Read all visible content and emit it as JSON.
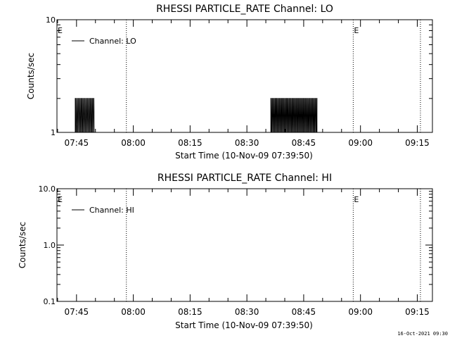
{
  "footer_timestamp": "16-Oct-2021 09:30",
  "chart_data": [
    {
      "type": "line",
      "title": "RHESSI PARTICLE_RATE Channel: LO",
      "xlabel": "Start Time (10-Nov-09 07:39:50)",
      "ylabel": "Counts/sec",
      "yscale": "log",
      "ylim": [
        1,
        10
      ],
      "xlim": [
        "07:39:50",
        "09:19:00"
      ],
      "yticks": [
        "1",
        "10"
      ],
      "xticks": [
        "07:45",
        "08:00",
        "08:15",
        "08:30",
        "08:45",
        "09:00",
        "09:15"
      ],
      "legend": "Channel: LO",
      "legend_position": "top-left",
      "markers": [
        {
          "label": "E",
          "time": "07:39:50",
          "style": "none"
        },
        {
          "label": "",
          "time": "07:58:10",
          "style": "dotted"
        },
        {
          "label": "E",
          "time": "08:58:05",
          "style": "dotted"
        },
        {
          "label": "",
          "time": "09:15:50",
          "style": "dotted"
        }
      ],
      "series": [
        {
          "name": "Channel: LO",
          "bursts": [
            {
              "start": "07:44:40",
              "end": "07:49:50",
              "low": 1,
              "high": 2,
              "period_s": 24
            },
            {
              "start": "08:36:20",
              "end": "08:48:30",
              "low": 1,
              "high": 2,
              "period_s": 22
            }
          ]
        }
      ]
    },
    {
      "type": "line",
      "title": "RHESSI PARTICLE_RATE Channel: HI",
      "xlabel": "Start Time (10-Nov-09 07:39:50)",
      "ylabel": "Counts/sec",
      "yscale": "log",
      "ylim": [
        0.1,
        10
      ],
      "xlim": [
        "07:39:50",
        "09:19:00"
      ],
      "yticks": [
        "0.1",
        "1.0",
        "10.0"
      ],
      "xticks": [
        "07:45",
        "08:00",
        "08:15",
        "08:30",
        "08:45",
        "09:00",
        "09:15"
      ],
      "legend": "Channel: HI",
      "legend_position": "top-left",
      "markers": [
        {
          "label": "E",
          "time": "07:39:50",
          "style": "none"
        },
        {
          "label": "",
          "time": "07:58:10",
          "style": "dotted"
        },
        {
          "label": "E",
          "time": "08:58:05",
          "style": "dotted"
        },
        {
          "label": "",
          "time": "09:15:50",
          "style": "dotted"
        }
      ],
      "series": [
        {
          "name": "Channel: HI",
          "bursts": []
        }
      ]
    }
  ]
}
